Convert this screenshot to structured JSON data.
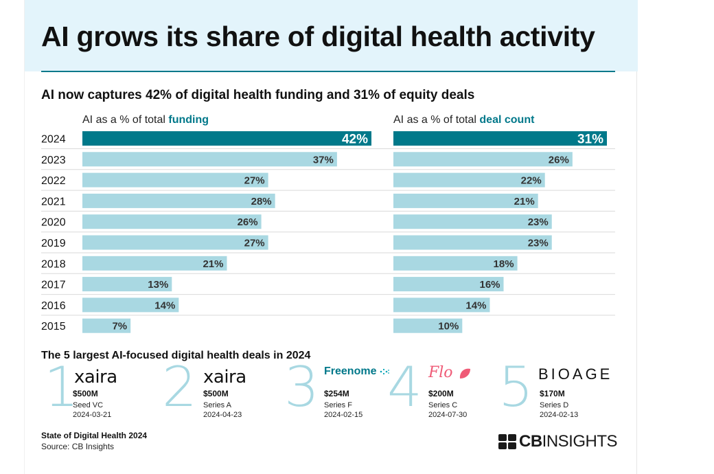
{
  "title": "AI grows its share of digital health activity",
  "colors": {
    "header_bg": "#e3f4fb",
    "accent": "#00788a",
    "bar_light": "#a9d8e2",
    "bar_dark": "#00798a",
    "numeral": "#a8d8e2",
    "flo_pink": "#ef5a76"
  },
  "chart_data": [
    {
      "type": "bar",
      "orientation": "horizontal",
      "title": "AI now captures 42% of digital health funding and 31% of equity deals",
      "label_prefix": "AI as a % of total",
      "label_highlight": "funding",
      "categories": [
        "2024",
        "2023",
        "2022",
        "2021",
        "2020",
        "2019",
        "2018",
        "2017",
        "2016",
        "2015"
      ],
      "values": [
        42,
        37,
        27,
        28,
        26,
        27,
        21,
        13,
        14,
        7
      ],
      "unit": "%",
      "xlim": [
        0,
        42
      ],
      "highlight_category": "2024"
    },
    {
      "type": "bar",
      "orientation": "horizontal",
      "title": "AI now captures 42% of digital health funding and 31% of equity deals",
      "label_prefix": "AI as a % of total",
      "label_highlight": "deal count",
      "categories": [
        "2024",
        "2023",
        "2022",
        "2021",
        "2020",
        "2019",
        "2018",
        "2017",
        "2016",
        "2015"
      ],
      "values": [
        31,
        26,
        22,
        21,
        23,
        23,
        18,
        16,
        14,
        10
      ],
      "unit": "%",
      "xlim": [
        0,
        31
      ],
      "highlight_category": "2024"
    }
  ],
  "deals": {
    "title": "The 5 largest AI-focused digital health deals in 2024",
    "items": [
      {
        "rank": "1",
        "company": "xaira",
        "amount": "$500M",
        "series": "Seed VC",
        "date": "2024-03-21"
      },
      {
        "rank": "2",
        "company": "xaira",
        "amount": "$500M",
        "series": "Series A",
        "date": "2024-04-23"
      },
      {
        "rank": "3",
        "company": "Freenome",
        "amount": "$254M",
        "series": "Series F",
        "date": "2024-02-15"
      },
      {
        "rank": "4",
        "company": "Flo",
        "amount": "$200M",
        "series": "Series C",
        "date": "2024-07-30"
      },
      {
        "rank": "5",
        "company": "BIOAGE",
        "amount": "$170M",
        "series": "Series D",
        "date": "2024-02-13"
      }
    ]
  },
  "footer": {
    "report": "State of Digital Health 2024",
    "source": "Source: CB Insights",
    "brand_bold": "CB",
    "brand_light": "INSIGHTS"
  }
}
